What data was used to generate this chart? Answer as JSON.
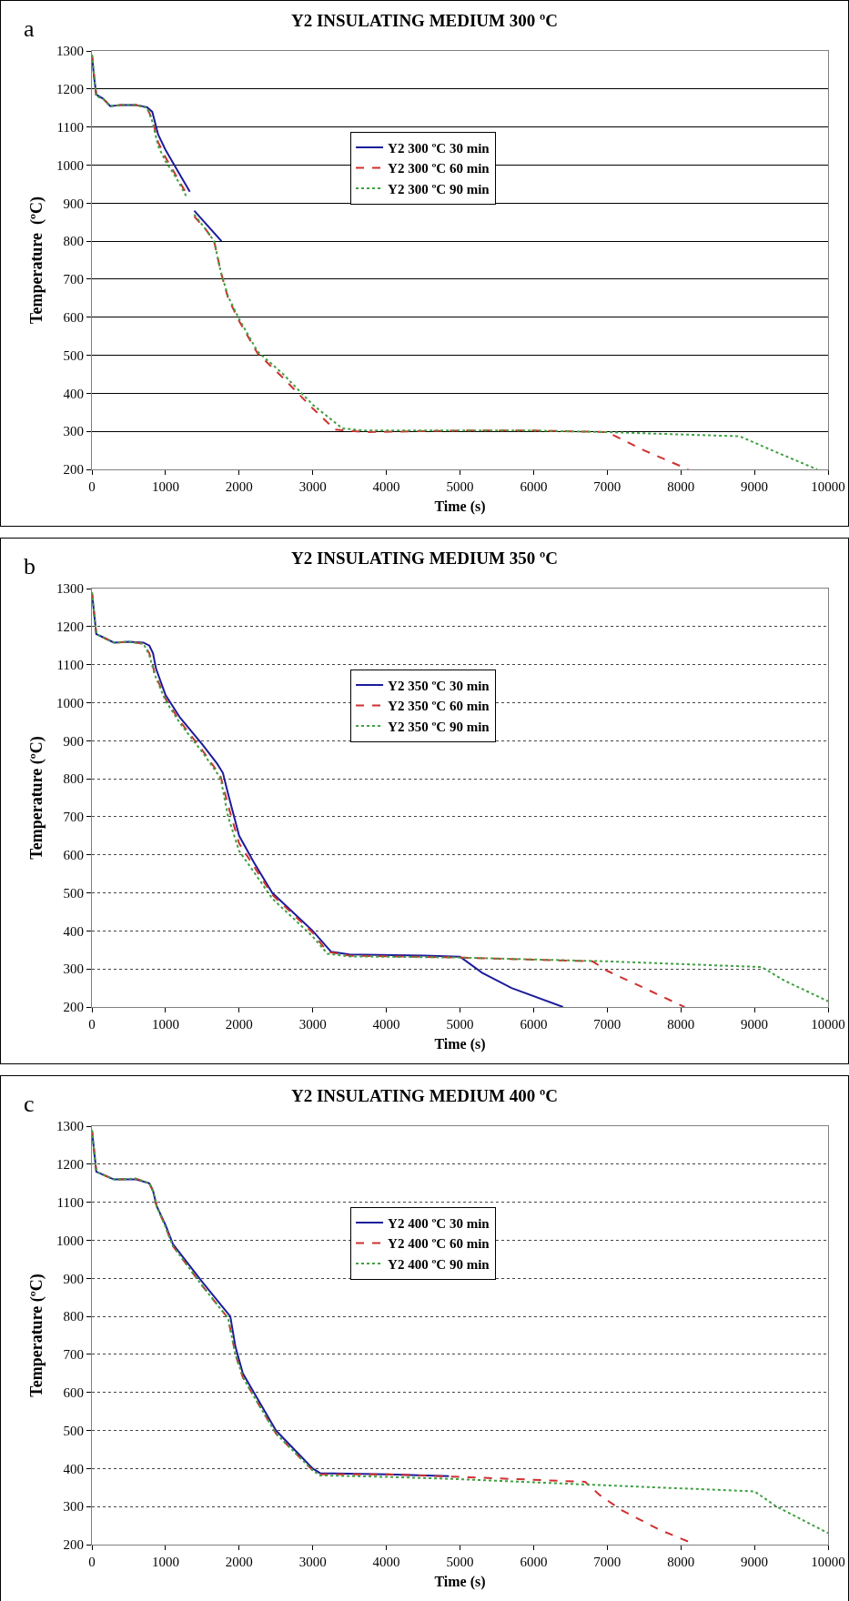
{
  "chart_data": [
    {
      "type": "line",
      "title": "Y2 INSULATING MEDIUM 300 ºC",
      "xlabel": "Time (s)",
      "ylabel": "Temperature  (ºC)",
      "annotations": [
        "a"
      ],
      "xlim": [
        0,
        10000
      ],
      "xticks": [
        0,
        1000,
        2000,
        3000,
        4000,
        5000,
        6000,
        7000,
        8000,
        9000,
        10000
      ],
      "ylim": [
        200,
        1300
      ],
      "yticks": [
        200,
        300,
        400,
        500,
        600,
        700,
        800,
        900,
        1000,
        1100,
        1200,
        1300
      ],
      "grid": "y",
      "legend": "center",
      "marker": "none",
      "series": [
        {
          "name": "Y2 300 ºC 30 min",
          "color": "#1c1c9c",
          "line_style": "solid",
          "x": [
            0,
            30,
            60,
            150,
            250,
            400,
            600,
            750,
            820,
            900,
            1000,
            1150,
            1330,
            1360,
            1390,
            1760
          ],
          "values": [
            1290,
            1230,
            1185,
            1175,
            1155,
            1158,
            1158,
            1152,
            1140,
            1080,
            1040,
            990,
            930,
            null,
            880,
            800
          ]
        },
        {
          "name": "Y2 300 ºC 60 min",
          "color": "#d03030",
          "line_style": "dashed",
          "x": [
            0,
            60,
            150,
            250,
            400,
            600,
            750,
            820,
            900,
            1000,
            1150,
            1300,
            1340,
            1390,
            1550,
            1660,
            1750,
            1850,
            2000,
            2250,
            2600,
            3000,
            3300,
            3700,
            5000,
            6000,
            7000,
            7500,
            8100
          ],
          "values": [
            1290,
            1180,
            1175,
            1155,
            1158,
            1158,
            1150,
            1120,
            1060,
            1020,
            970,
            920,
            null,
            865,
            830,
            800,
            720,
            650,
            590,
            505,
            440,
            360,
            305,
            298,
            302,
            302,
            298,
            250,
            200
          ]
        },
        {
          "name": "Y2 300 ºC 90 min",
          "color": "#40a040",
          "line_style": "dotted",
          "x": [
            0,
            60,
            150,
            250,
            400,
            600,
            750,
            820,
            900,
            1000,
            1150,
            1290,
            1340,
            1390,
            1550,
            1660,
            1750,
            1850,
            2000,
            2250,
            2600,
            3000,
            3400,
            3700,
            5000,
            6000,
            7000,
            8800,
            9300,
            9850
          ],
          "values": [
            1290,
            1180,
            1175,
            1155,
            1158,
            1158,
            1150,
            1115,
            1050,
            1010,
            965,
            915,
            null,
            870,
            830,
            800,
            720,
            655,
            595,
            510,
            450,
            370,
            308,
            302,
            302,
            302,
            298,
            287,
            245,
            200
          ]
        }
      ]
    },
    {
      "type": "line",
      "title": "Y2 INSULATING MEDIUM 350 ºC",
      "xlabel": "Time (s)",
      "ylabel": "Temperature (ºC)",
      "annotations": [
        "b"
      ],
      "xlim": [
        0,
        10000
      ],
      "xticks": [
        0,
        1000,
        2000,
        3000,
        4000,
        5000,
        6000,
        7000,
        8000,
        9000,
        10000
      ],
      "ylim": [
        200,
        1300
      ],
      "yticks": [
        200,
        300,
        400,
        500,
        600,
        700,
        800,
        900,
        1000,
        1100,
        1200,
        1300
      ],
      "grid": "y",
      "legend": "center",
      "marker": "none",
      "series": [
        {
          "name": "Y2 350 ºC 30 min",
          "color": "#1c1c9c",
          "line_style": "solid",
          "x": [
            0,
            60,
            150,
            300,
            500,
            700,
            780,
            830,
            870,
            1000,
            1200,
            1500,
            1700,
            1780,
            1850,
            2000,
            2200,
            2450,
            3000,
            3250,
            3500,
            4500,
            5000,
            5300,
            5700,
            6400
          ],
          "values": [
            1290,
            1180,
            1172,
            1158,
            1160,
            1158,
            1150,
            1130,
            1090,
            1020,
            960,
            890,
            840,
            815,
            760,
            650,
            580,
            500,
            400,
            345,
            338,
            335,
            332,
            290,
            250,
            200
          ]
        },
        {
          "name": "Y2 350 ºC 60 min",
          "color": "#d03030",
          "line_style": "dashed",
          "x": [
            0,
            60,
            300,
            500,
            700,
            780,
            850,
            1000,
            1200,
            1500,
            1700,
            1750,
            1850,
            2000,
            2200,
            2450,
            3000,
            3200,
            3500,
            5000,
            6800,
            7000,
            7500,
            8050
          ],
          "values": [
            1290,
            1180,
            1158,
            1160,
            1155,
            1130,
            1080,
            1010,
            950,
            875,
            820,
            805,
            730,
            630,
            570,
            495,
            395,
            345,
            335,
            330,
            320,
            295,
            250,
            200
          ]
        },
        {
          "name": "Y2 350 ºC 90 min",
          "color": "#40a040",
          "line_style": "dotted",
          "x": [
            0,
            60,
            300,
            500,
            700,
            780,
            850,
            1000,
            1200,
            1500,
            1700,
            1750,
            1850,
            2000,
            2200,
            2450,
            3000,
            3200,
            3500,
            5000,
            7000,
            9100,
            9400,
            10000
          ],
          "values": [
            1290,
            1180,
            1158,
            1160,
            1155,
            1125,
            1075,
            1005,
            945,
            870,
            815,
            800,
            700,
            610,
            555,
            485,
            385,
            340,
            333,
            330,
            320,
            305,
            270,
            215
          ]
        }
      ]
    },
    {
      "type": "line",
      "title": "Y2 INSULATING MEDIUM 400 ºC",
      "xlabel": "Time (s)",
      "ylabel": "Temperature (ºC)",
      "annotations": [
        "c"
      ],
      "xlim": [
        0,
        10000
      ],
      "xticks": [
        0,
        1000,
        2000,
        3000,
        4000,
        5000,
        6000,
        7000,
        8000,
        9000,
        10000
      ],
      "ylim": [
        200,
        1300
      ],
      "yticks": [
        200,
        300,
        400,
        500,
        600,
        700,
        800,
        900,
        1000,
        1100,
        1200,
        1300
      ],
      "grid": "y",
      "legend": "center",
      "marker": "none",
      "series": [
        {
          "name": "Y2 400 ºC 30 min",
          "color": "#1c1c9c",
          "line_style": "solid",
          "x": [
            0,
            60,
            300,
            600,
            780,
            830,
            880,
            1000,
            1100,
            1500,
            1880,
            1950,
            2050,
            2200,
            2500,
            3000,
            3100,
            4000,
            4850
          ],
          "values": [
            1290,
            1180,
            1160,
            1160,
            1150,
            1130,
            1090,
            1040,
            990,
            890,
            800,
            720,
            650,
            600,
            500,
            400,
            388,
            385,
            380
          ]
        },
        {
          "name": "Y2 400 ºC 60 min",
          "color": "#d03030",
          "line_style": "dashed",
          "x": [
            0,
            60,
            300,
            600,
            780,
            830,
            880,
            1000,
            1100,
            1500,
            1850,
            1950,
            2050,
            2200,
            2500,
            3000,
            3100,
            4000,
            5000,
            6700,
            6900,
            7200,
            7700,
            8200
          ],
          "values": [
            1290,
            1180,
            1160,
            1162,
            1150,
            1130,
            1090,
            1035,
            985,
            880,
            795,
            700,
            640,
            590,
            492,
            395,
            385,
            385,
            378,
            365,
            330,
            290,
            240,
            200
          ]
        },
        {
          "name": "Y2 400 ºC 90 min",
          "color": "#40a040",
          "line_style": "dotted",
          "x": [
            0,
            60,
            300,
            600,
            780,
            830,
            880,
            1000,
            1100,
            1500,
            1850,
            1950,
            2050,
            2200,
            2500,
            3000,
            3100,
            4000,
            5000,
            6700,
            9000,
            9300,
            9600,
            10000
          ],
          "values": [
            1290,
            1180,
            1160,
            1162,
            1150,
            1130,
            1090,
            1035,
            985,
            880,
            795,
            700,
            640,
            590,
            492,
            395,
            382,
            378,
            372,
            358,
            340,
            300,
            270,
            230
          ]
        }
      ]
    }
  ]
}
